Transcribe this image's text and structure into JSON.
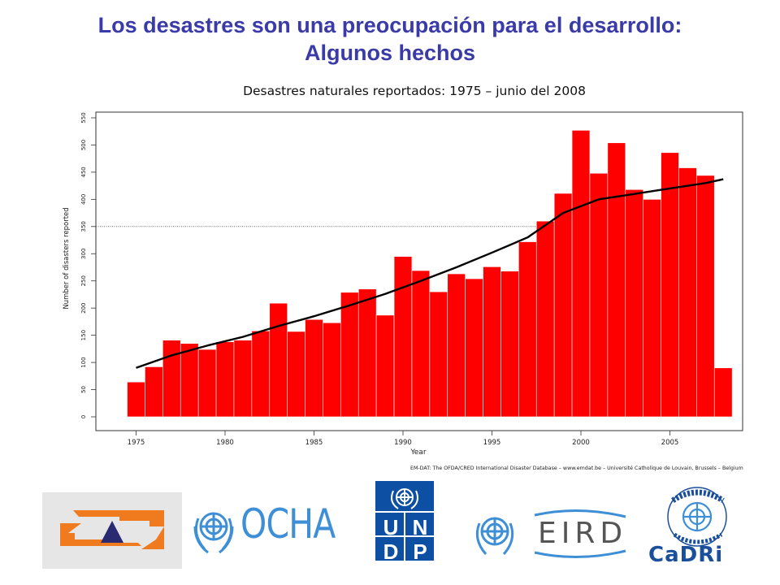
{
  "slide": {
    "title_line1": "Los desastres son una preocupación para el desarrollo:",
    "title_line2": "Algunos hechos",
    "subtitle": "Desastres naturales reportados: 1975 – junio del 2008",
    "source": "EM-DAT: The OFDA/CRED International Disaster Database – www.emdat.be – Université Catholique de Louvain, Brussels – Belgium"
  },
  "chart_data": {
    "type": "bar",
    "title": "",
    "xlabel": "Year",
    "ylabel": "Number of disasters reported",
    "ylim": [
      0,
      550
    ],
    "yticks": [
      0,
      50,
      100,
      150,
      200,
      250,
      300,
      350,
      400,
      450,
      500,
      550
    ],
    "xticks": [
      1975,
      1980,
      1985,
      1990,
      1995,
      2000,
      2005
    ],
    "bar_color": "#ff0000",
    "categories": [
      1975,
      1976,
      1977,
      1978,
      1979,
      1980,
      1981,
      1982,
      1983,
      1984,
      1985,
      1986,
      1987,
      1988,
      1989,
      1990,
      1991,
      1992,
      1993,
      1994,
      1995,
      1996,
      1997,
      1998,
      1999,
      2000,
      2001,
      2002,
      2003,
      2004,
      2005,
      2006,
      2007,
      2008
    ],
    "values": [
      64,
      92,
      141,
      135,
      124,
      138,
      141,
      158,
      209,
      157,
      179,
      173,
      229,
      235,
      187,
      295,
      269,
      230,
      263,
      254,
      276,
      268,
      322,
      360,
      411,
      527,
      448,
      504,
      418,
      400,
      486,
      458,
      444,
      90
    ],
    "reference_line": 350,
    "trend": {
      "x": [
        1975,
        1977,
        1979,
        1981,
        1983,
        1985,
        1987,
        1989,
        1991,
        1993,
        1995,
        1997,
        1999,
        2001,
        2003,
        2005,
        2007,
        2008
      ],
      "y": [
        90,
        113,
        131,
        147,
        167,
        185,
        205,
        226,
        250,
        275,
        302,
        330,
        375,
        400,
        410,
        420,
        430,
        437
      ]
    },
    "grid": false,
    "legend": "none"
  },
  "logos": {
    "ocha": "OCHA",
    "undp": [
      "U",
      "N",
      "D",
      "P"
    ],
    "eird": "EIRD",
    "cadri": "CaDRi",
    "cadri_ring": "CAPACITY FOR DISASTER REDUCTION INITIATIVE"
  },
  "colors": {
    "title": "#3a3aa8",
    "bars": "#ff0000",
    "undp_blue": "#0d4fa3",
    "un_blue": "#3e8fd6"
  }
}
